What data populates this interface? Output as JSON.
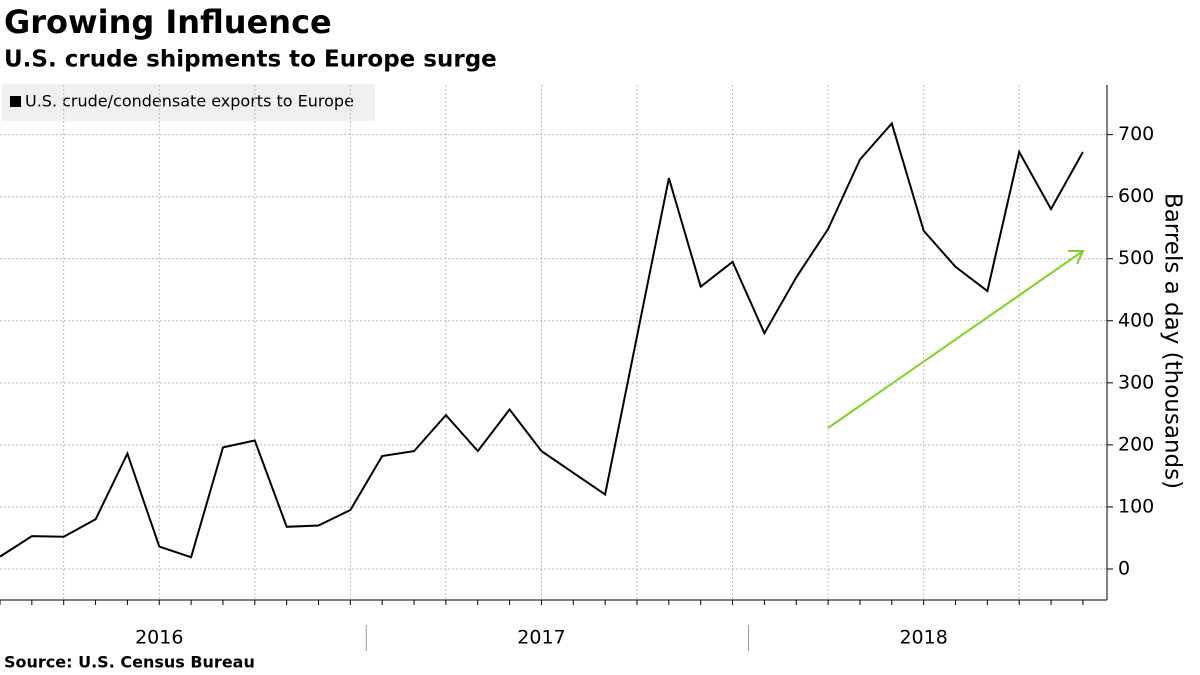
{
  "chart_data": {
    "type": "line",
    "title": "Growing Influence",
    "subtitle": "U.S. crude shipments to Europe surge",
    "source": "Source: U.S. Census Bureau",
    "y_label": "Barrels a day (thousands)",
    "categories": [
      null,
      null,
      null,
      null,
      null,
      "2016",
      null,
      null,
      null,
      null,
      null,
      null,
      null,
      null,
      null,
      null,
      null,
      "2017",
      null,
      null,
      null,
      null,
      null,
      null,
      null,
      null,
      null,
      null,
      null,
      "2018",
      null,
      null,
      null,
      null,
      null
    ],
    "series": [
      {
        "name": "U.S. crude/condensate exports to Europe",
        "color": "#000000",
        "values": [
          20,
          53,
          52,
          80,
          186,
          36,
          19,
          196,
          207,
          68,
          70,
          95,
          182,
          190,
          248,
          190,
          257,
          190,
          155,
          120,
          375,
          630,
          455,
          495,
          380,
          470,
          548,
          660,
          718,
          545,
          487,
          448,
          672,
          580,
          672
        ]
      }
    ],
    "ylim": [
      -50,
      780
    ],
    "yticks": [
      0,
      100,
      200,
      300,
      400,
      500,
      600,
      700
    ],
    "grid": true
  }
}
